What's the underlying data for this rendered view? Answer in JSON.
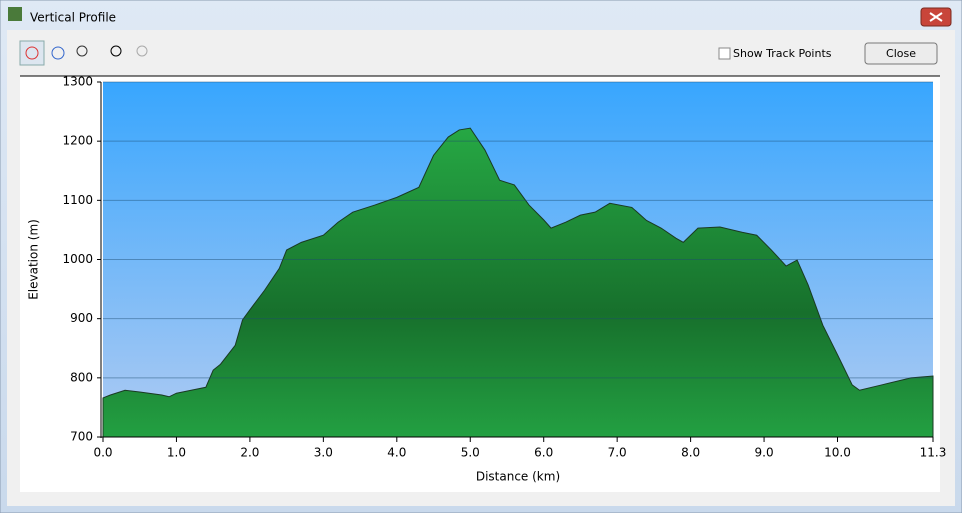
{
  "window": {
    "title": "Vertical Profile"
  },
  "toolbar": {
    "checkbox_label": "Show Track Points",
    "close_button": "Close"
  },
  "chart_data": {
    "type": "area",
    "xlabel": "Distance (km)",
    "ylabel": "Elevation (m)",
    "x": [
      0,
      0.1,
      0.3,
      0.5,
      0.8,
      0.9,
      1.0,
      1.2,
      1.4,
      1.5,
      1.6,
      1.8,
      1.9,
      2.0,
      2.2,
      2.4,
      2.5,
      2.7,
      3.0,
      3.2,
      3.4,
      3.7,
      4.0,
      4.3,
      4.5,
      4.7,
      4.85,
      5.0,
      5.2,
      5.4,
      5.6,
      5.8,
      6.0,
      6.1,
      6.3,
      6.5,
      6.7,
      6.9,
      7.2,
      7.4,
      7.6,
      7.8,
      7.9,
      8.1,
      8.4,
      8.7,
      8.9,
      9.1,
      9.3,
      9.45,
      9.6,
      9.8,
      10.0,
      10.2,
      10.3,
      10.6,
      11.0,
      11.3
    ],
    "values": [
      766,
      771,
      779,
      776,
      771,
      768,
      774,
      779,
      784,
      813,
      823,
      855,
      898,
      915,
      948,
      985,
      1016,
      1029,
      1041,
      1063,
      1080,
      1092,
      1105,
      1122,
      1176,
      1207,
      1219,
      1222,
      1185,
      1134,
      1126,
      1092,
      1067,
      1053,
      1063,
      1075,
      1080,
      1095,
      1088,
      1066,
      1053,
      1036,
      1029,
      1053,
      1055,
      1046,
      1041,
      1016,
      989,
      999,
      957,
      889,
      839,
      788,
      779,
      788,
      800,
      803
    ],
    "color": "#229a40",
    "xlim": [
      0,
      11.3
    ],
    "ylim": [
      700,
      1300
    ],
    "xticks": [
      {
        "value": 0,
        "label": "0.0"
      },
      {
        "value": 1,
        "label": "1.0"
      },
      {
        "value": 2,
        "label": "2.0"
      },
      {
        "value": 3,
        "label": "3.0"
      },
      {
        "value": 4,
        "label": "4.0"
      },
      {
        "value": 5,
        "label": "5.0"
      },
      {
        "value": 6,
        "label": "6.0"
      },
      {
        "value": 7,
        "label": "7.0"
      },
      {
        "value": 8,
        "label": "8.0"
      },
      {
        "value": 9,
        "label": "9.0"
      },
      {
        "value": 10,
        "label": "10.0"
      },
      {
        "value": 11.3,
        "label": "11.3"
      }
    ],
    "yticks": [
      700,
      800,
      900,
      1000,
      1100,
      1200,
      1300
    ],
    "grid": true
  }
}
